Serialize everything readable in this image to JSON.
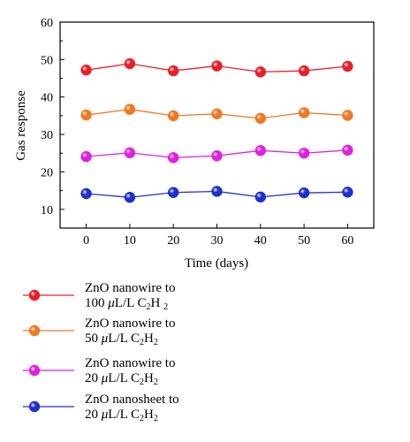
{
  "chart_data": {
    "type": "line",
    "xlabel": "Time (days)",
    "ylabel": "Gas response",
    "x": [
      0,
      10,
      20,
      30,
      40,
      50,
      60
    ],
    "xticks": [
      0,
      10,
      20,
      30,
      40,
      50,
      60
    ],
    "yticks": [
      10,
      20,
      30,
      40,
      50,
      60
    ],
    "xlim": [
      -6,
      66
    ],
    "ylim": [
      5,
      60
    ],
    "grid": false,
    "legend_position": "below",
    "series": [
      {
        "color": "#e8202a",
        "values": [
          47.2,
          48.9,
          47.0,
          48.3,
          46.7,
          47.0,
          48.2
        ],
        "label_l1": "ZnO nanowire to",
        "label_l2_a": "100 ",
        "label_l2_mu": "μ",
        "label_l2_b": "L/L C",
        "label_l2_sub1": "2",
        "label_l2_c": "H ",
        "label_l2_sub2": "2"
      },
      {
        "color": "#f07820",
        "values": [
          35.2,
          36.7,
          35.0,
          35.5,
          34.3,
          35.8,
          35.1
        ],
        "label_l1": "ZnO nanowire to",
        "label_l2_a": "50 ",
        "label_l2_mu": "μ",
        "label_l2_b": "L/L C",
        "label_l2_sub1": "2",
        "label_l2_c": "H",
        "label_l2_sub2": "2"
      },
      {
        "color": "#e020e0",
        "values": [
          24.1,
          25.1,
          23.8,
          24.3,
          25.7,
          25.0,
          25.8
        ],
        "label_l1": "ZnO nanowire to",
        "label_l2_a": "20 ",
        "label_l2_mu": "μ",
        "label_l2_b": "L/L C",
        "label_l2_sub1": "2",
        "label_l2_c": "H",
        "label_l2_sub2": "2"
      },
      {
        "color": "#2030d0",
        "values": [
          14.2,
          13.2,
          14.5,
          14.8,
          13.3,
          14.4,
          14.6
        ],
        "label_l1": "ZnO nanosheet to",
        "label_l2_a": "20 ",
        "label_l2_mu": "μ",
        "label_l2_b": "L/L C",
        "label_l2_sub1": "2",
        "label_l2_c": "H",
        "label_l2_sub2": "2"
      }
    ]
  }
}
